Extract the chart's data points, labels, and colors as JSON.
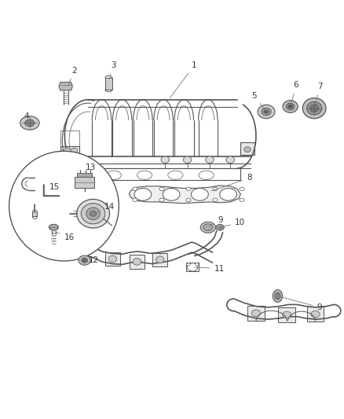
{
  "bg_color": "#ffffff",
  "line_color": "#555555",
  "label_color": "#333333",
  "fig_width": 4.38,
  "fig_height": 5.33,
  "dpi": 100,
  "label_fs": 7.5,
  "lw_main": 0.8,
  "lw_thick": 1.2
}
